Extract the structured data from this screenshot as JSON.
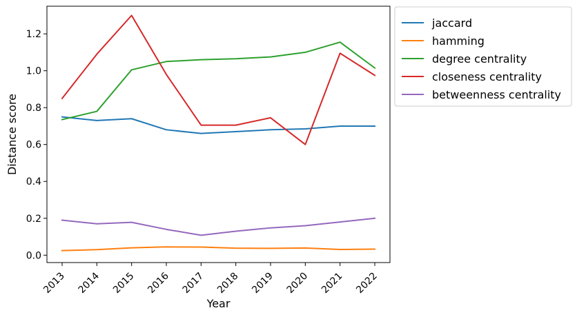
{
  "chart_data": {
    "type": "line",
    "title": "",
    "xlabel": "Year",
    "ylabel": "Distance score",
    "x": [
      "2013",
      "2014",
      "2015",
      "2016",
      "2017",
      "2018",
      "2019",
      "2020",
      "2021",
      "2022"
    ],
    "ylim": [
      -0.04,
      1.35
    ],
    "yticks": [
      "0.0",
      "0.2",
      "0.4",
      "0.6",
      "0.8",
      "1.0",
      "1.2"
    ],
    "grid": false,
    "legend": "outside-upper-right",
    "series": [
      {
        "name": "jaccard",
        "color": "#1f77b4",
        "values": [
          0.75,
          0.73,
          0.74,
          0.68,
          0.66,
          0.67,
          0.68,
          0.685,
          0.7,
          0.7
        ]
      },
      {
        "name": "hamming",
        "color": "#ff7f0e",
        "values": [
          0.025,
          0.03,
          0.04,
          0.045,
          0.044,
          0.038,
          0.037,
          0.039,
          0.031,
          0.033
        ]
      },
      {
        "name": "degree centrality",
        "color": "#2ca02c",
        "values": [
          0.735,
          0.78,
          1.005,
          1.05,
          1.06,
          1.065,
          1.075,
          1.1,
          1.155,
          1.015
        ]
      },
      {
        "name": "closeness centrality",
        "color": "#d62728",
        "values": [
          0.85,
          1.09,
          1.3,
          0.98,
          0.705,
          0.705,
          0.745,
          0.6,
          1.095,
          0.975
        ]
      },
      {
        "name": "betweenness centrality",
        "color": "#9467bd",
        "values": [
          0.19,
          0.17,
          0.178,
          0.14,
          0.108,
          0.13,
          0.148,
          0.16,
          0.18,
          0.2
        ]
      }
    ]
  }
}
